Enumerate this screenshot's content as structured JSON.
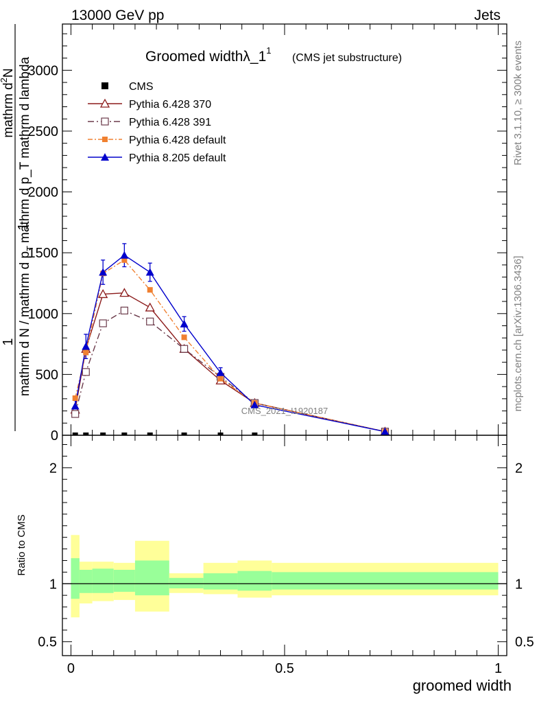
{
  "header": {
    "left": "13000 GeV pp",
    "right": "Jets"
  },
  "side": {
    "rivet": "Rivet 3.1.10, ≥ 300k events",
    "mcplots": "mcplots.cern.ch [arXiv:1306.3436]"
  },
  "watermark": "CMS_2021_I1920187",
  "chart_data": {
    "type": "line",
    "title": "Groomed widthλ_1",
    "title_sup": "1",
    "subtitle": "(CMS jet substructure)",
    "ylabel_num": "1",
    "ylabel_den": "mathrm d N / mathrm d p",
    "ylabel_sub": "T",
    "ylabel_rest": "mathrm d p_T mathrm d lambda",
    "ylabel_top_num": "mathrm d",
    "ylabel_top_sup": "2",
    "ylabel_top_N": "N",
    "xlabel": "groomed width",
    "ratio_ylabel": "Ratio to CMS",
    "xlim": [
      -0.02,
      1.02
    ],
    "ylim": [
      0,
      3380
    ],
    "ratio_ylim": [
      0.38,
      2.28
    ],
    "x_ticks": [
      {
        "v": 0,
        "label": "0"
      },
      {
        "v": 0.5,
        "label": "0.5"
      },
      {
        "v": 1,
        "label": "1"
      }
    ],
    "y_ticks": [
      {
        "v": 0,
        "label": "0"
      },
      {
        "v": 500,
        "label": "500"
      },
      {
        "v": 1000,
        "label": "1000"
      },
      {
        "v": 1500,
        "label": "1500"
      },
      {
        "v": 2000,
        "label": "2000"
      },
      {
        "v": 2500,
        "label": "2500"
      },
      {
        "v": 3000,
        "label": "3000"
      }
    ],
    "ratio_ticks": [
      {
        "v": 0.5,
        "label": "0.5"
      },
      {
        "v": 1,
        "label": "1"
      },
      {
        "v": 2,
        "label": "2"
      }
    ],
    "x": [
      0.01,
      0.035,
      0.075,
      0.125,
      0.185,
      0.265,
      0.35,
      0.43,
      0.735
    ],
    "series": [
      {
        "name": "CMS",
        "color": "#000000",
        "marker": "square-filled",
        "dash": "",
        "values": [
          0,
          0,
          0,
          0,
          0,
          0,
          0,
          0,
          0
        ]
      },
      {
        "name": "Pythia 6.428 370",
        "color": "#8b1a1a",
        "marker": "triangle-open",
        "dash": "",
        "values": [
          210,
          710,
          1160,
          1170,
          1050,
          710,
          450,
          265,
          30
        ]
      },
      {
        "name": "Pythia 6.428 391",
        "color": "#6b3a4a",
        "marker": "square-open",
        "dash": "9,4,2,4",
        "values": [
          175,
          520,
          920,
          1025,
          935,
          710,
          480,
          265,
          30
        ]
      },
      {
        "name": "Pythia 6.428 default",
        "color": "#f08030",
        "marker": "square-filled",
        "dash": "7,3,2,3",
        "values": [
          305,
          680,
          1330,
          1440,
          1195,
          805,
          465,
          265,
          30
        ]
      },
      {
        "name": "Pythia 8.205 default",
        "color": "#0000cc",
        "marker": "triangle-filled",
        "dash": "",
        "values": [
          240,
          730,
          1340,
          1480,
          1340,
          915,
          515,
          250,
          30
        ]
      }
    ],
    "error_bars": {
      "series": "Pythia 8.205 default",
      "errors": [
        45,
        100,
        100,
        95,
        75,
        60,
        40,
        20,
        8
      ]
    },
    "ratio_bands": [
      {
        "x0": 0.0,
        "x1": 0.02,
        "yellow": [
          0.71,
          1.42
        ],
        "green": [
          0.87,
          1.22
        ]
      },
      {
        "x0": 0.02,
        "x1": 0.05,
        "yellow": [
          0.83,
          1.19
        ],
        "green": [
          0.92,
          1.12
        ]
      },
      {
        "x0": 0.05,
        "x1": 0.1,
        "yellow": [
          0.85,
          1.19
        ],
        "green": [
          0.92,
          1.13
        ]
      },
      {
        "x0": 0.1,
        "x1": 0.15,
        "yellow": [
          0.86,
          1.18
        ],
        "green": [
          0.93,
          1.12
        ]
      },
      {
        "x0": 0.15,
        "x1": 0.23,
        "yellow": [
          0.76,
          1.37
        ],
        "green": [
          0.9,
          1.2
        ]
      },
      {
        "x0": 0.23,
        "x1": 0.31,
        "yellow": [
          0.92,
          1.09
        ],
        "green": [
          0.96,
          1.05
        ]
      },
      {
        "x0": 0.31,
        "x1": 0.39,
        "yellow": [
          0.91,
          1.18
        ],
        "green": [
          0.95,
          1.09
        ]
      },
      {
        "x0": 0.39,
        "x1": 0.47,
        "yellow": [
          0.88,
          1.2
        ],
        "green": [
          0.94,
          1.11
        ]
      },
      {
        "x0": 0.47,
        "x1": 1.0,
        "yellow": [
          0.9,
          1.18
        ],
        "green": [
          0.95,
          1.1
        ]
      }
    ],
    "cms_markers_x": [
      0.01,
      0.035,
      0.075,
      0.125,
      0.185,
      0.265,
      0.35,
      0.43
    ],
    "legend_position": "top-left",
    "grid": false
  }
}
